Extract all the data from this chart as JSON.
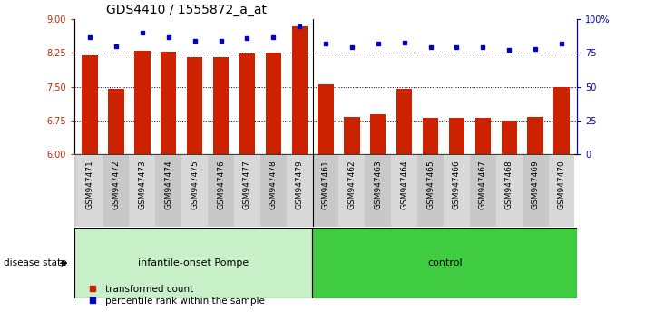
{
  "title": "GDS4410 / 1555872_a_at",
  "categories": [
    "GSM947471",
    "GSM947472",
    "GSM947473",
    "GSM947474",
    "GSM947475",
    "GSM947476",
    "GSM947477",
    "GSM947478",
    "GSM947479",
    "GSM947461",
    "GSM947462",
    "GSM947463",
    "GSM947464",
    "GSM947465",
    "GSM947466",
    "GSM947467",
    "GSM947468",
    "GSM947469",
    "GSM947470"
  ],
  "bar_values": [
    8.19,
    7.45,
    8.3,
    8.27,
    8.15,
    8.15,
    8.24,
    8.25,
    8.85,
    7.56,
    6.82,
    6.88,
    7.46,
    6.81,
    6.8,
    6.8,
    6.75,
    6.82,
    7.5
  ],
  "dot_values": [
    87,
    80,
    90,
    87,
    84,
    84,
    86,
    87,
    95,
    82,
    79,
    82,
    83,
    79,
    79,
    79,
    77,
    78,
    82
  ],
  "group_labels": [
    "infantile-onset Pompe",
    "control"
  ],
  "group_sizes": [
    9,
    10
  ],
  "group_color_1": "#c8f0c8",
  "group_color_2": "#40cc40",
  "bar_color": "#cc2200",
  "dot_color": "#0000cc",
  "ylim_left": [
    6,
    9
  ],
  "ylim_right": [
    0,
    100
  ],
  "yticks_left": [
    6,
    6.75,
    7.5,
    8.25,
    9
  ],
  "yticks_right": [
    0,
    25,
    50,
    75,
    100
  ],
  "ytick_labels_right": [
    "0",
    "25",
    "50",
    "75",
    "100%"
  ],
  "legend_items": [
    "transformed count",
    "percentile rank within the sample"
  ],
  "legend_colors": [
    "#cc2200",
    "#0000cc"
  ],
  "disease_state_label": "disease state",
  "grid_dotted_values": [
    6.75,
    7.5,
    8.25
  ],
  "ax_background": "#ffffff",
  "title_fontsize": 10,
  "tick_fontsize": 7,
  "bar_width": 0.6
}
